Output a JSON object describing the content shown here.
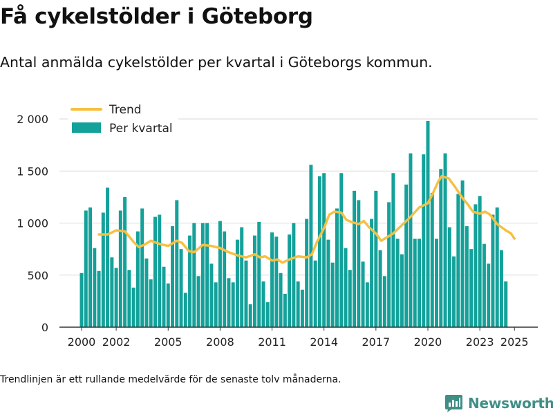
{
  "header": {
    "title": "Få cykelstölder i Göteborg",
    "subtitle": "Antal anmälda cykelstölder per kvartal i Göteborgs kommun."
  },
  "footer": {
    "note": "Trendlinjen är ett rullande medelvärde för de senaste tolv månaderna.",
    "brand": "Newsworthy"
  },
  "colors": {
    "bar": "#14a19a",
    "trend": "#f6c042",
    "grid": "#d9d9d9",
    "axis": "#333333",
    "brand": "#3f8f86"
  },
  "chart_data": {
    "type": "bar",
    "legend": {
      "placement": "top-left",
      "entries": [
        "Trend",
        "Per kvartal"
      ]
    },
    "grid": true,
    "ylim": [
      0,
      2000
    ],
    "yticks": [
      0,
      500,
      1000,
      1500,
      2000
    ],
    "ytick_labels": [
      "0",
      "500",
      "1 000",
      "1 500",
      "2 000"
    ],
    "xticks": [
      2000,
      2002,
      2005,
      2008,
      2011,
      2014,
      2017,
      2020,
      2023,
      2025
    ],
    "xtick_labels": [
      "2000",
      "2002",
      "2005",
      "2008",
      "2011",
      "2014",
      "2017",
      "2020",
      "2023",
      "2025"
    ],
    "series": [
      {
        "name": "Per kvartal",
        "type": "bar",
        "x_start": "2000-Q1",
        "values": [
          520,
          1120,
          1150,
          760,
          540,
          1100,
          1340,
          670,
          570,
          1120,
          1250,
          550,
          380,
          920,
          1140,
          660,
          460,
          1060,
          1080,
          580,
          420,
          970,
          1220,
          750,
          330,
          880,
          1000,
          490,
          1000,
          1000,
          610,
          430,
          1020,
          920,
          470,
          430,
          840,
          960,
          640,
          220,
          880,
          1010,
          440,
          240,
          910,
          870,
          520,
          320,
          890,
          1000,
          440,
          360,
          1040,
          1560,
          640,
          1450,
          1480,
          840,
          620,
          1140,
          1480,
          760,
          550,
          1310,
          1220,
          630,
          430,
          1040,
          1310,
          740,
          490,
          1200,
          1480,
          850,
          700,
          1370,
          1670,
          850,
          850,
          1660,
          1980,
          1290,
          850,
          1520,
          1670,
          960,
          680,
          1280,
          1410,
          970,
          750,
          1180,
          1260,
          800,
          610,
          1080,
          1150,
          740,
          440
        ]
      },
      {
        "name": "Trend",
        "type": "line",
        "points": [
          [
            2001.0,
            890
          ],
          [
            2001.5,
            890
          ],
          [
            2002.0,
            930
          ],
          [
            2002.5,
            920
          ],
          [
            2003.0,
            820
          ],
          [
            2003.3,
            770
          ],
          [
            2003.6,
            790
          ],
          [
            2004.0,
            830
          ],
          [
            2004.5,
            800
          ],
          [
            2005.0,
            780
          ],
          [
            2005.5,
            830
          ],
          [
            2005.8,
            810
          ],
          [
            2006.2,
            730
          ],
          [
            2006.5,
            720
          ],
          [
            2007.0,
            790
          ],
          [
            2007.5,
            780
          ],
          [
            2008.0,
            760
          ],
          [
            2008.5,
            720
          ],
          [
            2009.0,
            690
          ],
          [
            2009.5,
            670
          ],
          [
            2010.0,
            700
          ],
          [
            2010.3,
            670
          ],
          [
            2010.6,
            680
          ],
          [
            2011.0,
            640
          ],
          [
            2011.3,
            650
          ],
          [
            2011.6,
            620
          ],
          [
            2012.0,
            650
          ],
          [
            2012.5,
            680
          ],
          [
            2013.0,
            670
          ],
          [
            2013.3,
            700
          ],
          [
            2013.6,
            820
          ],
          [
            2014.0,
            950
          ],
          [
            2014.3,
            1080
          ],
          [
            2014.6,
            1110
          ],
          [
            2015.0,
            1100
          ],
          [
            2015.3,
            1030
          ],
          [
            2015.6,
            1010
          ],
          [
            2016.0,
            990
          ],
          [
            2016.3,
            1020
          ],
          [
            2016.6,
            960
          ],
          [
            2017.0,
            900
          ],
          [
            2017.3,
            830
          ],
          [
            2017.6,
            860
          ],
          [
            2018.0,
            900
          ],
          [
            2018.5,
            980
          ],
          [
            2019.0,
            1060
          ],
          [
            2019.5,
            1150
          ],
          [
            2020.0,
            1190
          ],
          [
            2020.3,
            1290
          ],
          [
            2020.6,
            1400
          ],
          [
            2020.8,
            1450
          ],
          [
            2021.2,
            1430
          ],
          [
            2021.6,
            1340
          ],
          [
            2022.0,
            1240
          ],
          [
            2022.3,
            1180
          ],
          [
            2022.6,
            1110
          ],
          [
            2023.0,
            1090
          ],
          [
            2023.3,
            1110
          ],
          [
            2023.6,
            1080
          ],
          [
            2024.0,
            990
          ],
          [
            2024.5,
            930
          ],
          [
            2024.8,
            900
          ],
          [
            2025.0,
            850
          ]
        ]
      }
    ]
  }
}
